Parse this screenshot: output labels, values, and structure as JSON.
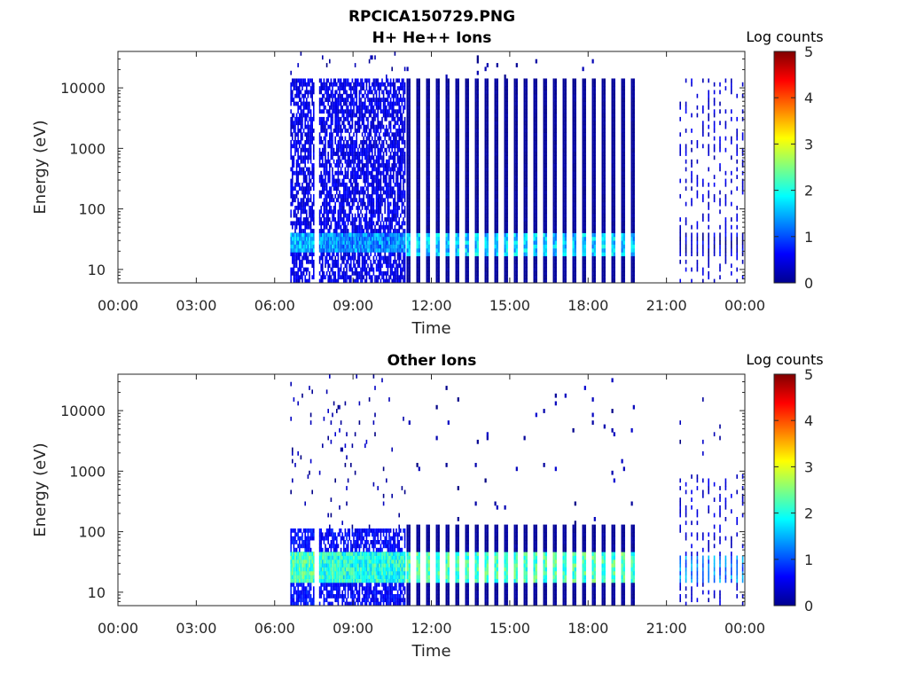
{
  "figure": {
    "title_line1": "RPCICA150729.PNG",
    "title_line2": "H+ He++ Ions"
  },
  "chart_data": [
    {
      "type": "heatmap",
      "title": "H+ He++ Ions",
      "xlabel": "Time",
      "ylabel": "Energy (eV)",
      "x_ticks": [
        "00:00",
        "03:00",
        "06:00",
        "09:00",
        "12:00",
        "15:00",
        "18:00",
        "21:00",
        "00:00"
      ],
      "xlim_hours": [
        0,
        24
      ],
      "y_scale": "log",
      "y_ticks": [
        10,
        100,
        1000,
        10000
      ],
      "y_tick_labels": [
        "10",
        "100",
        "1000",
        "10000"
      ],
      "ylim": [
        6,
        40000
      ],
      "colorbar": {
        "label": "Log counts",
        "range": [
          0,
          5
        ],
        "ticks": [
          "0",
          "1",
          "2",
          "3",
          "4",
          "5"
        ],
        "colormap": "jet"
      },
      "data_intervals_hours": [
        {
          "start": 6.6,
          "end": 7.5,
          "pattern": "dense",
          "max_energy": 15000,
          "band_low": 20,
          "band_high": 40,
          "band_level": 1.5,
          "base_level": 0.3
        },
        {
          "start": 7.7,
          "end": 11.0,
          "pattern": "dense",
          "max_energy": 15000,
          "band_low": 20,
          "band_high": 40,
          "band_level": 1.3,
          "base_level": 0.3
        },
        {
          "start": 11.05,
          "end": 20.0,
          "pattern": "stripes",
          "max_energy": 15000,
          "band_low": 17,
          "band_high": 42,
          "band_level": 1.6,
          "base_level": 0.0
        },
        {
          "start": 21.5,
          "end": 24.0,
          "pattern": "sparse",
          "max_energy": 15000,
          "band_low": 17,
          "band_high": 40,
          "band_level": 0.3,
          "base_level": 0.2
        }
      ]
    },
    {
      "type": "heatmap",
      "title": "Other Ions",
      "xlabel": "Time",
      "ylabel": "Energy (eV)",
      "x_ticks": [
        "00:00",
        "03:00",
        "06:00",
        "09:00",
        "12:00",
        "15:00",
        "18:00",
        "21:00",
        "00:00"
      ],
      "xlim_hours": [
        0,
        24
      ],
      "y_scale": "log",
      "y_ticks": [
        10,
        100,
        1000,
        10000
      ],
      "y_tick_labels": [
        "10",
        "100",
        "1000",
        "10000"
      ],
      "ylim": [
        6,
        40000
      ],
      "colorbar": {
        "label": "Log counts",
        "range": [
          0,
          5
        ],
        "ticks": [
          "0",
          "1",
          "2",
          "3",
          "4",
          "5"
        ],
        "colormap": "jet"
      },
      "data_intervals_hours": [
        {
          "start": 6.6,
          "end": 7.5,
          "pattern": "dense",
          "max_energy": 120,
          "band_low": 14,
          "band_high": 45,
          "band_level": 2.2,
          "base_level": 0.5
        },
        {
          "start": 7.7,
          "end": 11.0,
          "pattern": "dense",
          "max_energy": 120,
          "band_low": 14,
          "band_high": 45,
          "band_level": 2.0,
          "base_level": 0.4
        },
        {
          "start": 11.05,
          "end": 20.0,
          "pattern": "stripes",
          "max_energy": 130,
          "band_low": 15,
          "band_high": 45,
          "band_level": 2.2,
          "base_level": 0.0
        },
        {
          "start": 21.5,
          "end": 24.0,
          "pattern": "sparse",
          "max_energy": 1000,
          "band_low": 15,
          "band_high": 40,
          "band_level": 1.2,
          "base_level": 0.2
        }
      ]
    }
  ]
}
